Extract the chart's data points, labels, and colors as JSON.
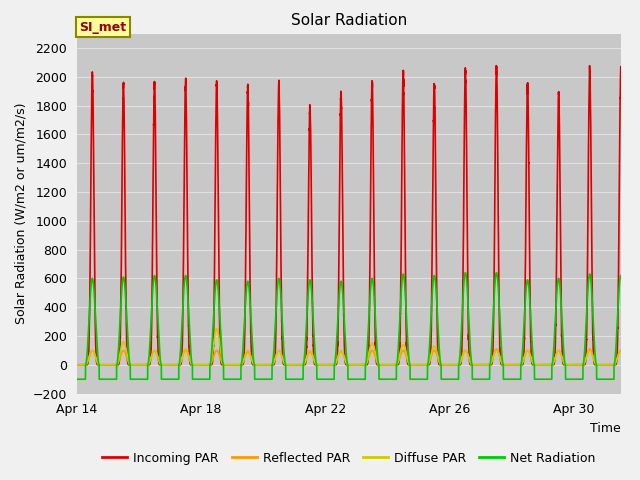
{
  "title": "Solar Radiation",
  "ylabel": "Solar Radiation (W/m2 or um/m2/s)",
  "xlabel": "Time",
  "ylim": [
    -200,
    2300
  ],
  "yticks": [
    -200,
    0,
    200,
    400,
    600,
    800,
    1000,
    1200,
    1400,
    1600,
    1800,
    2000,
    2200
  ],
  "xlim_days": [
    0,
    17.5
  ],
  "num_days": 18,
  "xtick_days": [
    0,
    4,
    8,
    12,
    16
  ],
  "xtick_labels": [
    "Apr 14",
    "Apr 18",
    "Apr 22",
    "Apr 26",
    "Apr 30"
  ],
  "figure_bg_color": "#f0f0f0",
  "plot_bg_color": "#c8c8c8",
  "grid_color": "#e0e0e0",
  "annotation_text": "SI_met",
  "annotation_bg": "#ffff99",
  "annotation_border": "#888800",
  "annotation_text_color": "#990000",
  "series": {
    "incoming_par": {
      "color": "#dd0000",
      "label": "Incoming PAR",
      "lw": 1.2
    },
    "reflected_par": {
      "color": "#ff9900",
      "label": "Reflected PAR",
      "lw": 1.2
    },
    "diffuse_par": {
      "color": "#cccc00",
      "label": "Diffuse PAR",
      "lw": 1.2
    },
    "net_radiation": {
      "color": "#00cc00",
      "label": "Net Radiation",
      "lw": 1.2
    }
  },
  "peaks_incoming": [
    2020,
    1940,
    1960,
    1970,
    1950,
    1920,
    1960,
    1780,
    1890,
    1960,
    2020,
    1950,
    2040,
    2060,
    1940,
    1880,
    2060,
    2040
  ],
  "peaks_net": [
    600,
    610,
    620,
    620,
    590,
    580,
    600,
    590,
    580,
    600,
    630,
    620,
    640,
    640,
    590,
    600,
    630,
    620
  ],
  "peaks_reflected": [
    100,
    100,
    100,
    100,
    100,
    90,
    100,
    90,
    95,
    100,
    100,
    100,
    100,
    110,
    100,
    100,
    110,
    100
  ],
  "peaks_diffuse": [
    100,
    160,
    100,
    110,
    250,
    100,
    100,
    100,
    100,
    150,
    140,
    130,
    100,
    100,
    100,
    100,
    100,
    100
  ],
  "title_fontsize": 11,
  "axis_label_fontsize": 9,
  "tick_fontsize": 9
}
